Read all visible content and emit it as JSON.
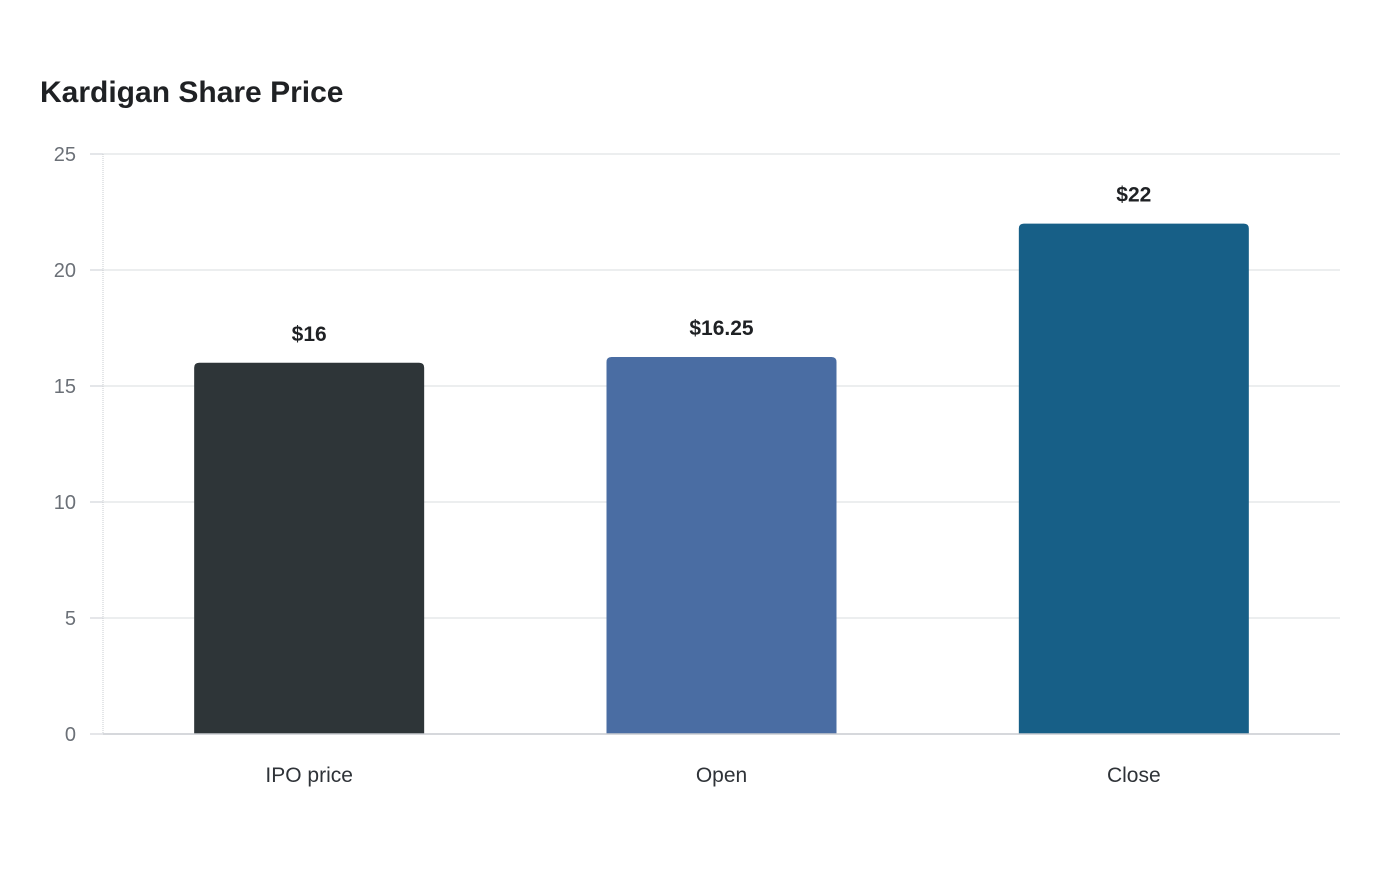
{
  "chart_data": {
    "type": "bar",
    "title": "Kardigan Share Price",
    "xlabel": "",
    "ylabel": "",
    "categories": [
      "IPO price",
      "Open",
      "Close"
    ],
    "values": [
      16,
      16.25,
      22
    ],
    "value_labels": [
      "$16",
      "$16.25",
      "$22"
    ],
    "colors": [
      "#2e3538",
      "#4a6da3",
      "#175f87"
    ],
    "ylim": [
      0,
      25
    ],
    "yticks": [
      0,
      5,
      10,
      15,
      20,
      25
    ],
    "grid": true,
    "legend": "none"
  }
}
